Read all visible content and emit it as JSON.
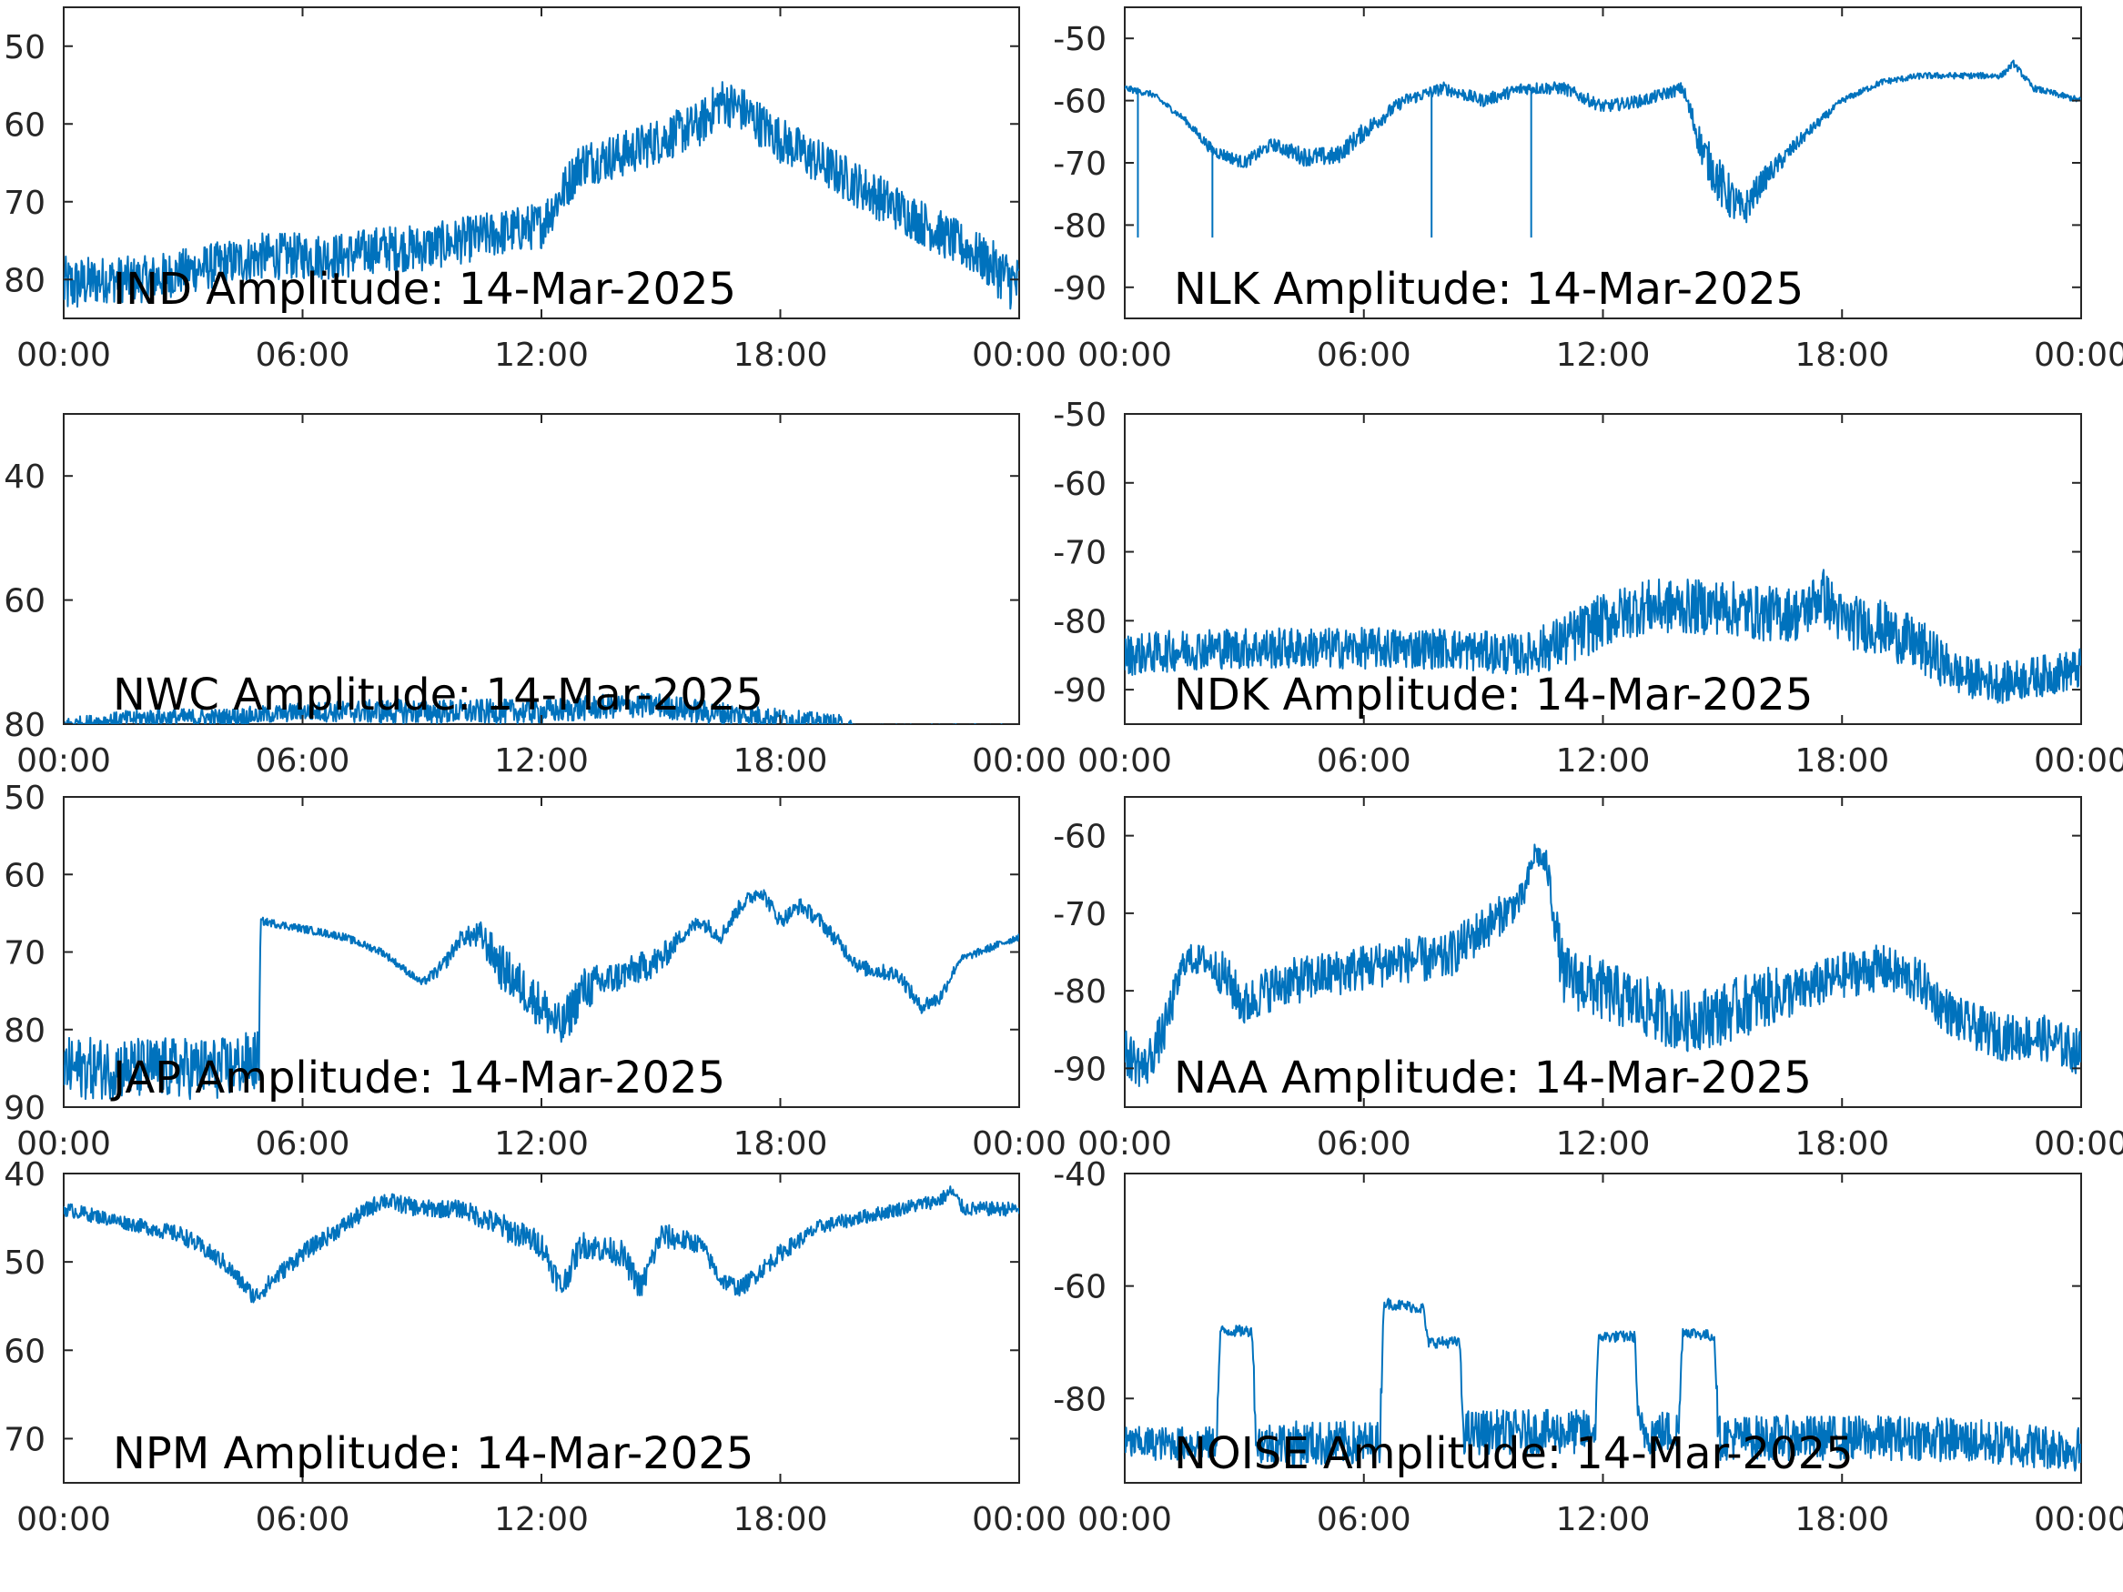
{
  "figure": {
    "series_color": "#0072BD",
    "frame_color": "#262626"
  },
  "chart_data": [
    {
      "type": "line",
      "title": "IND Amplitude: 14-Mar-2025",
      "xlabel": "",
      "ylabel": "",
      "x_ticks": [
        "00:00",
        "06:00",
        "12:00",
        "18:00",
        "00:00"
      ],
      "xlim": [
        "00:00",
        "24:00"
      ],
      "y_ticks": [
        {
          "value": -50,
          "label": "50"
        },
        {
          "value": -60,
          "label": "60"
        },
        {
          "value": -70,
          "label": "70"
        },
        {
          "value": -80,
          "label": "80"
        }
      ],
      "ylim": [
        -85,
        -45
      ],
      "grid": false,
      "series": [
        {
          "x": [
            0,
            1,
            2,
            3,
            4,
            5,
            6,
            7,
            8,
            9,
            10,
            11,
            12,
            12.5,
            13,
            14,
            15,
            16,
            16.5,
            17,
            17.5,
            18,
            19,
            20,
            21,
            22,
            23,
            24
          ],
          "y": [
            -81,
            -80,
            -80,
            -79,
            -78,
            -77,
            -77,
            -77,
            -76,
            -76,
            -75,
            -74,
            -73,
            -69,
            -65,
            -64,
            -62,
            -60,
            -57,
            -58,
            -60,
            -62,
            -65,
            -68,
            -71,
            -74,
            -77,
            -81
          ],
          "noise": [
            4,
            3,
            3,
            3,
            3,
            3,
            3,
            3,
            3,
            3,
            3,
            3,
            3,
            3,
            3,
            3,
            3,
            3,
            3,
            3,
            3,
            3,
            3,
            3,
            3,
            3,
            3,
            4
          ]
        }
      ]
    },
    {
      "type": "line",
      "title": "NLK Amplitude: 14-Mar-2025",
      "xlabel": "",
      "ylabel": "",
      "x_ticks": [
        "00:00",
        "06:00",
        "12:00",
        "18:00",
        "00:00"
      ],
      "xlim": [
        "00:00",
        "24:00"
      ],
      "y_ticks": [
        {
          "value": -50,
          "label": "-50"
        },
        {
          "value": -60,
          "label": "-60"
        },
        {
          "value": -70,
          "label": "-70"
        },
        {
          "value": -80,
          "label": "-80"
        },
        {
          "value": -90,
          "label": "-90"
        }
      ],
      "ylim": [
        -95,
        -45
      ],
      "grid": false,
      "series": [
        {
          "x": [
            0,
            0.7,
            1.5,
            2.2,
            3,
            3.7,
            4.5,
            5.3,
            6,
            7,
            8,
            9,
            10,
            11,
            12,
            13,
            14,
            14.5,
            15,
            15.5,
            16,
            17,
            18,
            19,
            20,
            21,
            22,
            22.3,
            22.8,
            24
          ],
          "y": [
            -58,
            -59,
            -63,
            -68,
            -70,
            -67,
            -69,
            -69,
            -65,
            -60,
            -58,
            -60,
            -58,
            -58,
            -61,
            -60,
            -58,
            -68,
            -74,
            -78,
            -73,
            -66,
            -60,
            -57,
            -56,
            -56,
            -56,
            -54,
            -58,
            -60
          ],
          "noise": [
            0.5,
            0.5,
            0.5,
            1,
            1,
            1,
            1.5,
            1.5,
            1.5,
            1,
            1,
            1,
            1,
            1,
            1,
            1,
            1,
            3,
            4,
            3,
            2,
            1,
            0.5,
            0.5,
            0.5,
            0.5,
            0.5,
            0.5,
            0.5,
            0.5
          ],
          "spikes": [
            {
              "x": 0.33,
              "y": -82
            },
            {
              "x": 2.2,
              "y": -82
            },
            {
              "x": 7.7,
              "y": -82
            },
            {
              "x": 10.2,
              "y": -82
            }
          ]
        }
      ]
    },
    {
      "type": "line",
      "title": "NWC Amplitude: 14-Mar-2025",
      "xlabel": "",
      "ylabel": "",
      "x_ticks": [
        "00:00",
        "06:00",
        "12:00",
        "18:00",
        "00:00"
      ],
      "xlim": [
        "00:00",
        "24:00"
      ],
      "y_ticks": [
        {
          "value": -40,
          "label": "40"
        },
        {
          "value": -60,
          "label": "60"
        },
        {
          "value": -80,
          "label": "80"
        }
      ],
      "ylim": [
        -80,
        -30
      ],
      "grid": false,
      "series": [
        {
          "x": [
            0,
            2,
            4,
            6,
            8,
            10,
            12,
            14,
            15,
            16,
            18,
            19.5,
            20,
            22,
            24
          ],
          "y": [
            -80,
            -79,
            -79,
            -78,
            -78,
            -78,
            -78,
            -77,
            -77,
            -78,
            -79,
            -80,
            -81,
            -81,
            -81
          ],
          "noise": [
            1,
            1.5,
            1.5,
            1.5,
            2,
            2,
            2,
            2,
            2,
            2,
            1.5,
            1.5,
            1,
            1,
            1
          ]
        }
      ]
    },
    {
      "type": "line",
      "title": "NDK Amplitude: 14-Mar-2025",
      "xlabel": "",
      "ylabel": "",
      "x_ticks": [
        "00:00",
        "06:00",
        "12:00",
        "18:00",
        "00:00"
      ],
      "xlim": [
        "00:00",
        "24:00"
      ],
      "y_ticks": [
        {
          "value": -50,
          "label": "-50"
        },
        {
          "value": -60,
          "label": "-60"
        },
        {
          "value": -70,
          "label": "-70"
        },
        {
          "value": -80,
          "label": "-80"
        },
        {
          "value": -90,
          "label": "-90"
        }
      ],
      "ylim": [
        -95,
        -50
      ],
      "grid": false,
      "series": [
        {
          "x": [
            0,
            2,
            4,
            6,
            8,
            10,
            11,
            12,
            13,
            14,
            15,
            16,
            17,
            17.5,
            18,
            19,
            20,
            21,
            22,
            23,
            24
          ],
          "y": [
            -85,
            -84,
            -84,
            -84,
            -84,
            -85,
            -83,
            -80,
            -78,
            -78,
            -78,
            -79,
            -79,
            -76,
            -80,
            -81,
            -84,
            -88,
            -89,
            -88,
            -87
          ],
          "noise": [
            3,
            3,
            3,
            3,
            3,
            3,
            4,
            4,
            4,
            4,
            4,
            4,
            4,
            4,
            4,
            4,
            4,
            3,
            3,
            3,
            3
          ]
        }
      ]
    },
    {
      "type": "line",
      "title": "JAP Amplitude: 14-Mar-2025",
      "xlabel": "",
      "ylabel": "",
      "x_ticks": [
        "00:00",
        "06:00",
        "12:00",
        "18:00",
        "00:00"
      ],
      "xlim": [
        "00:00",
        "24:00"
      ],
      "y_ticks": [
        {
          "value": -50,
          "label": "50"
        },
        {
          "value": -60,
          "label": "60"
        },
        {
          "value": -70,
          "label": "70"
        },
        {
          "value": -80,
          "label": "80"
        },
        {
          "value": -90,
          "label": "90"
        }
      ],
      "ylim": [
        -90,
        -50
      ],
      "grid": false,
      "series": [
        {
          "x": [
            0,
            1,
            2,
            3,
            4,
            4.9,
            4.95,
            6,
            7,
            8,
            9,
            9.5,
            10,
            10.5,
            11,
            12,
            12.5,
            13,
            14,
            15,
            15.5,
            16,
            16.5,
            17,
            17.5,
            18,
            18.5,
            19,
            20,
            21,
            21.5,
            22,
            22.5,
            23,
            24
          ],
          "y": [
            -85,
            -85,
            -85,
            -85,
            -85,
            -84,
            -66,
            -67,
            -68,
            -70,
            -74,
            -72,
            -68,
            -68,
            -72,
            -77,
            -80,
            -75,
            -73,
            -71,
            -68,
            -66,
            -68,
            -64,
            -62,
            -66,
            -64,
            -66,
            -72,
            -73,
            -77,
            -76,
            -71,
            -70,
            -68
          ],
          "noise": [
            4,
            4,
            4,
            4,
            4,
            4,
            0.5,
            0.5,
            0.5,
            0.5,
            0.5,
            1,
            1,
            2,
            3,
            3,
            3,
            3,
            2,
            2,
            1,
            1,
            1,
            1,
            1,
            1,
            1,
            1,
            1,
            1,
            1,
            1,
            0.5,
            0.5,
            0.5
          ]
        }
      ]
    },
    {
      "type": "line",
      "title": "NAA Amplitude: 14-Mar-2025",
      "xlabel": "",
      "ylabel": "",
      "x_ticks": [
        "00:00",
        "06:00",
        "12:00",
        "18:00",
        "00:00"
      ],
      "xlim": [
        "00:00",
        "24:00"
      ],
      "y_ticks": [
        {
          "value": -60,
          "label": "-60"
        },
        {
          "value": -70,
          "label": "-70"
        },
        {
          "value": -80,
          "label": "-80"
        },
        {
          "value": -90,
          "label": "-90"
        }
      ],
      "ylim": [
        -95,
        -55
      ],
      "grid": false,
      "series": [
        {
          "x": [
            0,
            0.5,
            1,
            1.5,
            2,
            2.5,
            3,
            3.5,
            4,
            5,
            6,
            7,
            8,
            9,
            10,
            10.3,
            10.6,
            11,
            12,
            13,
            14,
            15,
            16,
            17,
            18,
            19,
            20,
            20.5,
            21,
            22,
            23,
            24
          ],
          "y": [
            -88,
            -90,
            -85,
            -76,
            -76,
            -78,
            -82,
            -80,
            -79,
            -78,
            -77,
            -76,
            -76,
            -72,
            -68,
            -62,
            -64,
            -78,
            -80,
            -82,
            -84,
            -83,
            -81,
            -80,
            -78,
            -77,
            -79,
            -82,
            -84,
            -86,
            -86,
            -88
          ],
          "noise": [
            3,
            3,
            3,
            2,
            2,
            3,
            3,
            3,
            3,
            3,
            3,
            3,
            3,
            3,
            2,
            1.5,
            2,
            4,
            4,
            4,
            4,
            4,
            4,
            3,
            3,
            3,
            3,
            3,
            3,
            3,
            3,
            3
          ]
        }
      ]
    },
    {
      "type": "line",
      "title": "NPM Amplitude: 14-Mar-2025",
      "xlabel": "",
      "ylabel": "",
      "x_ticks": [
        "00:00",
        "06:00",
        "12:00",
        "18:00",
        "00:00"
      ],
      "xlim": [
        "00:00",
        "24:00"
      ],
      "y_ticks": [
        {
          "value": -40,
          "label": "40"
        },
        {
          "value": -50,
          "label": "50"
        },
        {
          "value": -60,
          "label": "60"
        },
        {
          "value": -70,
          "label": "70"
        }
      ],
      "ylim": [
        -75,
        -40
      ],
      "grid": false,
      "series": [
        {
          "x": [
            0,
            1,
            2,
            3,
            4,
            4.8,
            5.5,
            6,
            7,
            8,
            9,
            10,
            11,
            12,
            12.5,
            13,
            14,
            14.5,
            15,
            16,
            16.5,
            17,
            17.5,
            18,
            19,
            20,
            21,
            22,
            22.3,
            22.6,
            23,
            24
          ],
          "y": [
            -44,
            -45,
            -46,
            -47,
            -50,
            -54,
            -51,
            -49,
            -46,
            -43,
            -44,
            -44,
            -46,
            -48,
            -53,
            -48,
            -49,
            -53,
            -47,
            -48,
            -52,
            -53,
            -51,
            -49,
            -46,
            -45,
            -44,
            -43,
            -42,
            -44,
            -44,
            -44
          ],
          "noise": [
            0.8,
            0.8,
            0.8,
            1,
            1,
            1,
            1,
            1,
            1,
            1,
            1,
            1,
            1.5,
            1.5,
            1.5,
            1.5,
            1.5,
            1.5,
            1.5,
            1,
            1,
            1,
            1,
            1,
            0.8,
            0.8,
            0.8,
            0.8,
            0.8,
            0.8,
            0.8,
            0.8
          ]
        }
      ]
    },
    {
      "type": "line",
      "title": "NOISE Amplitude: 14-Mar-2025",
      "xlabel": "",
      "ylabel": "",
      "x_ticks": [
        "00:00",
        "06:00",
        "12:00",
        "18:00",
        "00:00"
      ],
      "xlim": [
        "00:00",
        "24:00"
      ],
      "y_ticks": [
        {
          "value": -40,
          "label": "-40"
        },
        {
          "value": -60,
          "label": "-60"
        },
        {
          "value": -80,
          "label": "-80"
        }
      ],
      "ylim": [
        -95,
        -40
      ],
      "grid": false,
      "series": [
        {
          "x": [
            0,
            2.3,
            2.4,
            3.2,
            3.3,
            6.4,
            6.5,
            7.5,
            7.6,
            8.4,
            8.5,
            11.8,
            11.9,
            12.8,
            12.9,
            13.9,
            14.0,
            14.8,
            14.9,
            18,
            20,
            22,
            24
          ],
          "y": [
            -88,
            -88,
            -68,
            -68,
            -88,
            -88,
            -63,
            -64,
            -70,
            -70,
            -86,
            -86,
            -69,
            -69,
            -86,
            -86,
            -68,
            -69,
            -87,
            -87,
            -87,
            -88,
            -89
          ],
          "noise": [
            3,
            3,
            1,
            1,
            4,
            4,
            1,
            1,
            1,
            1,
            4,
            4,
            1,
            1,
            4,
            4,
            1,
            1,
            4,
            4,
            4,
            4,
            4
          ]
        }
      ]
    }
  ]
}
